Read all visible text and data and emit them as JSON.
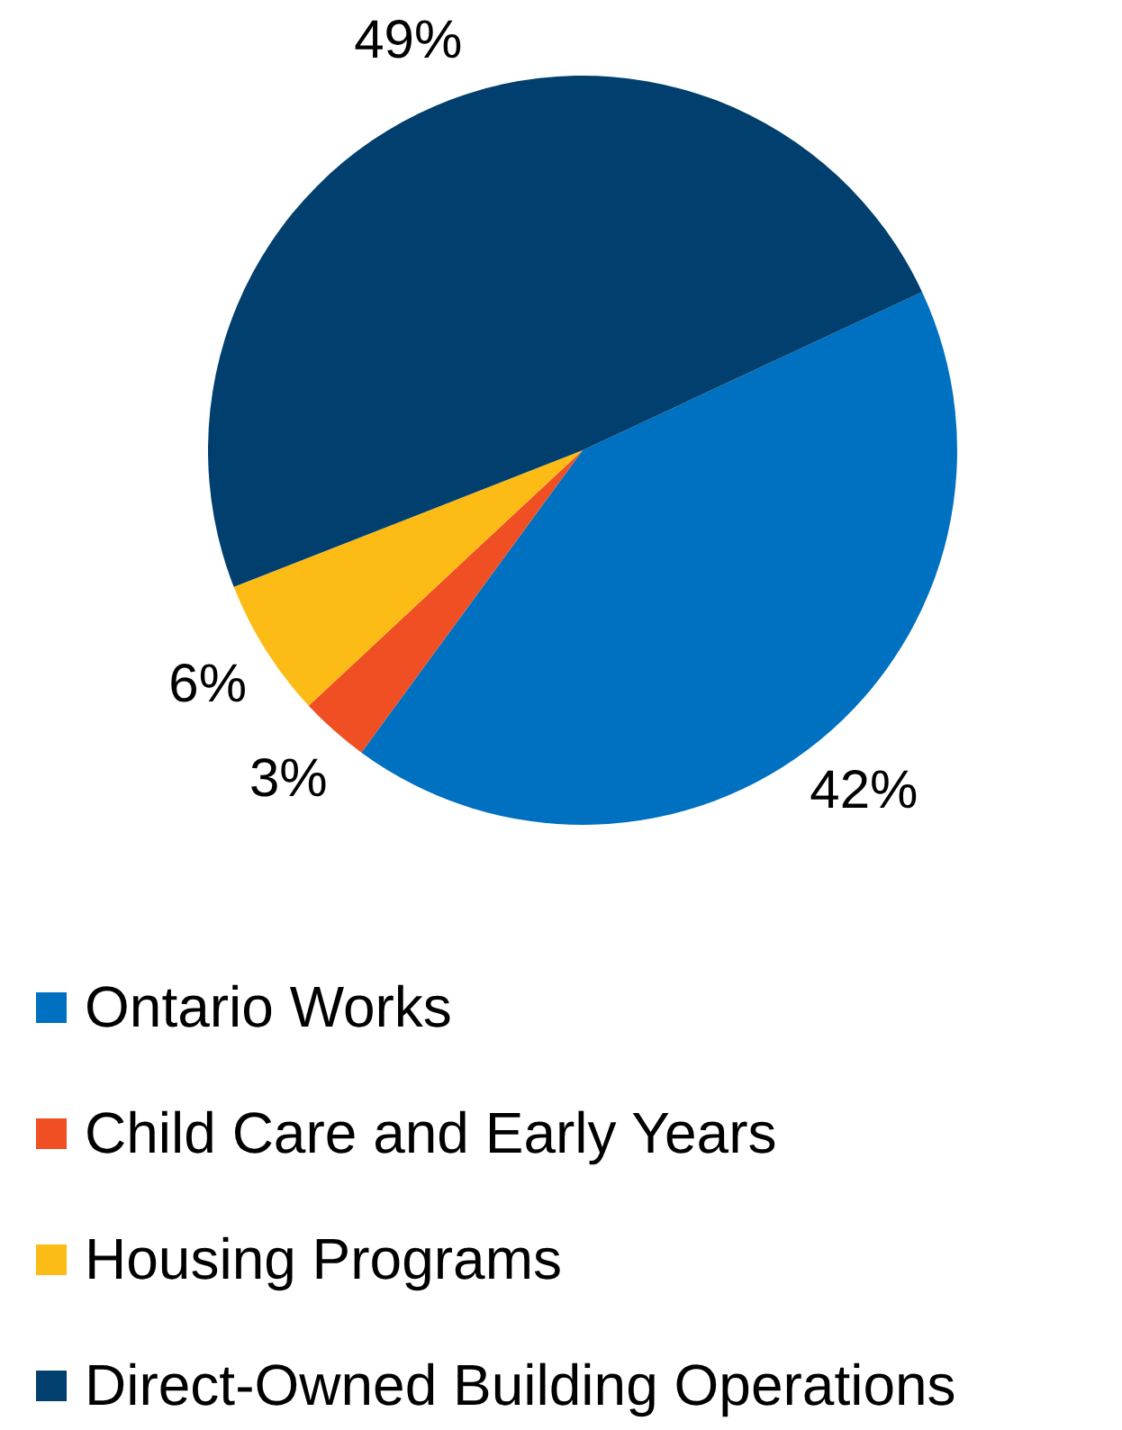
{
  "chart_data": {
    "type": "pie",
    "categories": [
      "Ontario Works",
      "Child Care and Early Years",
      "Housing Programs",
      "Direct-Owned Building Operations"
    ],
    "values": [
      42,
      3,
      6,
      49
    ],
    "colors": [
      "#0070c0",
      "#f04e23",
      "#fdbb16",
      "#003f6e"
    ],
    "value_labels": [
      "42%",
      "3%",
      "6%",
      "49%"
    ],
    "legend": "bottom"
  }
}
